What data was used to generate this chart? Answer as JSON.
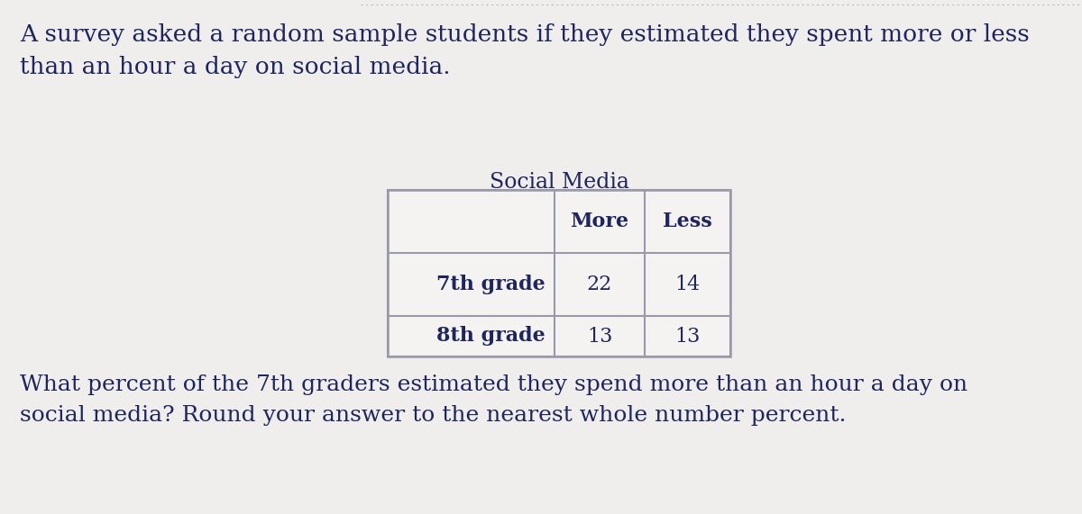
{
  "intro_text": "A survey asked a random sample students if they estimated they spent more or less\nthan an hour a day on social media.",
  "table_title": "Social Media",
  "col_headers": [
    "More",
    "Less"
  ],
  "row_headers": [
    "7th grade",
    "8th grade"
  ],
  "values": [
    [
      22,
      14
    ],
    [
      13,
      13
    ]
  ],
  "question_text": "What percent of the 7th graders estimated they spend more than an hour a day on\nsocial media? Round your answer to the nearest whole number percent.",
  "bg_color": "#f0eeec",
  "table_bg": "#f5f3f1",
  "text_color": "#1e2560",
  "border_color": "#9999aa",
  "dotted_line_color": "#bbbbbb",
  "intro_fontsize": 19,
  "table_title_fontsize": 17,
  "header_fontsize": 16,
  "cell_fontsize": 16,
  "question_fontsize": 18
}
